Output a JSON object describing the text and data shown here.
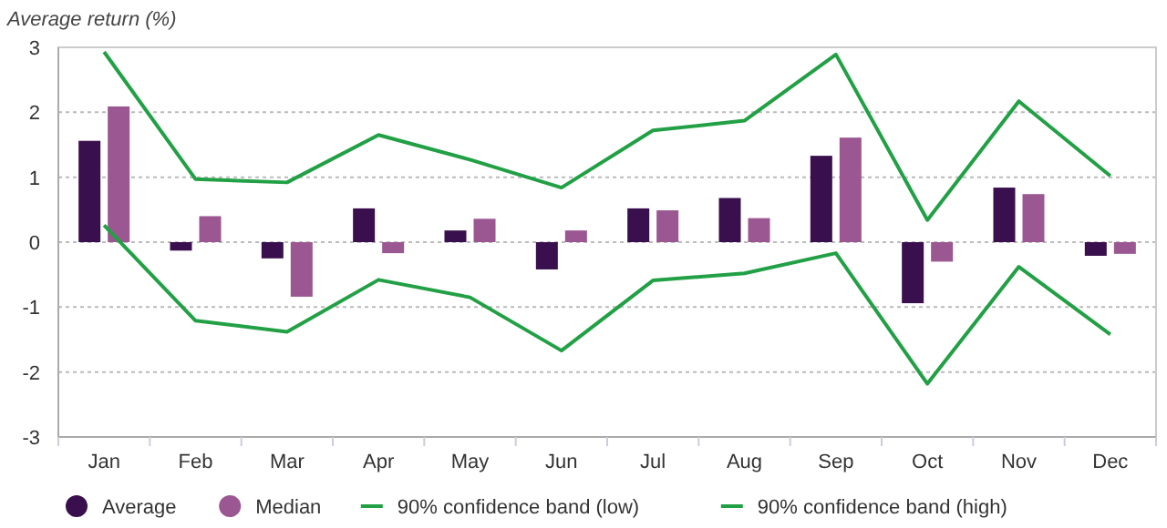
{
  "chart_data": {
    "type": "bar",
    "ylabel": "Average return (%)",
    "categories": [
      "Jan",
      "Feb",
      "Mar",
      "Apr",
      "May",
      "Jun",
      "Jul",
      "Aug",
      "Sep",
      "Oct",
      "Nov",
      "Dec"
    ],
    "series": [
      {
        "name": "Average",
        "color": "#39104d",
        "values": [
          1.56,
          -0.13,
          -0.25,
          0.52,
          0.18,
          -0.42,
          0.52,
          0.68,
          1.33,
          -0.94,
          0.84,
          -0.21
        ]
      },
      {
        "name": "Median",
        "color": "#9b5791",
        "values": [
          2.09,
          0.4,
          -0.84,
          -0.17,
          0.36,
          0.18,
          0.49,
          0.37,
          1.61,
          -0.3,
          0.74,
          -0.18
        ]
      },
      {
        "name": "90% confidence band (low)",
        "type": "line",
        "color": "#22a045",
        "values": [
          0.26,
          -1.21,
          -1.38,
          -0.58,
          -0.85,
          -1.67,
          -0.59,
          -0.48,
          -0.17,
          -2.18,
          -0.38,
          -1.42
        ]
      },
      {
        "name": "90% confidence band (high)",
        "type": "line",
        "color": "#22a045",
        "values": [
          2.93,
          0.97,
          0.92,
          1.65,
          1.27,
          0.84,
          1.72,
          1.87,
          2.89,
          0.34,
          2.17,
          1.02
        ]
      }
    ],
    "ylim": [
      -3,
      3
    ],
    "yticks": [
      -3,
      -2,
      -1,
      0,
      1,
      2,
      3
    ],
    "grid": "y",
    "legend": "bottom"
  }
}
